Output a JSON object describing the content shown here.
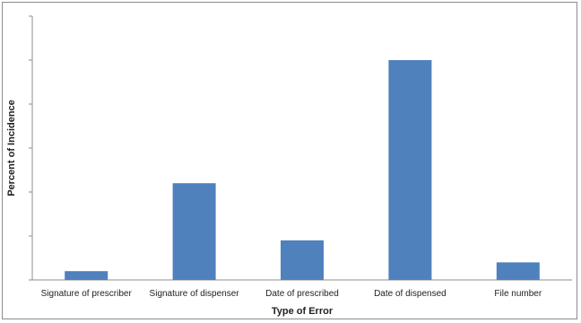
{
  "chart_data": {
    "type": "bar",
    "title": "",
    "xlabel": "Type of Error",
    "ylabel": "Percent of Incidence",
    "categories": [
      "Signature of prescriber",
      "Signature of dispenser",
      "Date of prescribed",
      "Date of dispensed",
      "File number"
    ],
    "values": [
      2,
      22,
      9,
      50,
      4
    ],
    "ylim": [
      0,
      60
    ],
    "y_tick_count": 6,
    "y_tick_labels_shown": false,
    "grid": false,
    "legend": "none",
    "bar_color": "#4f81bd"
  }
}
